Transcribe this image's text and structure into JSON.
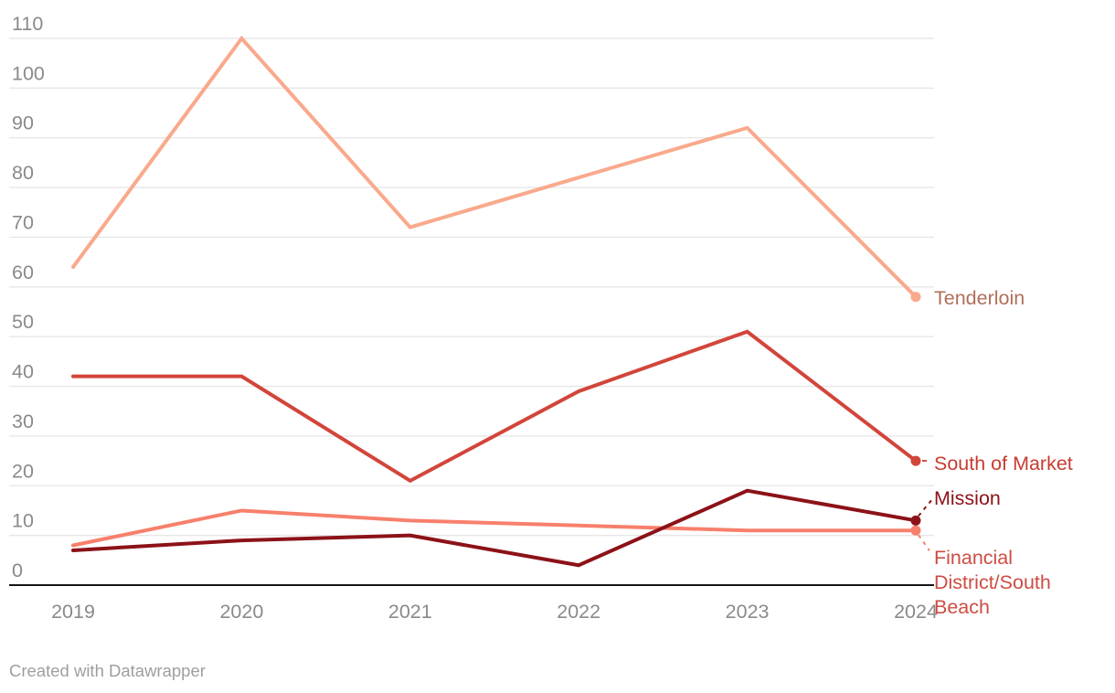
{
  "footer": {
    "credit": "Created with Datawrapper"
  },
  "axis": {
    "tick_color": "#8a8a8a",
    "gridline_color": "#e7e7e7",
    "baseline_color": "#151515"
  },
  "chart_data": {
    "type": "line",
    "title": "",
    "xlabel": "",
    "ylabel": "",
    "x": [
      2019,
      2020,
      2021,
      2022,
      2023,
      2024
    ],
    "ylim": [
      0,
      110
    ],
    "yticks": [
      0,
      10,
      20,
      30,
      40,
      50,
      60,
      70,
      80,
      90,
      100,
      110
    ],
    "grid": true,
    "legend_position": "direct-labels-right",
    "series": [
      {
        "id": "tenderloin",
        "name": "Tenderloin",
        "values": [
          64,
          110,
          72,
          82,
          92,
          58
        ],
        "color": "#F9A98C",
        "label_color": "#B06F58"
      },
      {
        "id": "south_of_market",
        "name": "South of Market",
        "values": [
          42,
          42,
          21,
          39,
          51,
          25
        ],
        "color": "#D2453B",
        "label_color": "#C93B32"
      },
      {
        "id": "financial_district",
        "name": "Financial District/South Beach",
        "values": [
          8,
          15,
          13,
          12,
          11,
          11
        ],
        "color": "#F7806C",
        "label_color": "#CE4C43"
      },
      {
        "id": "mission",
        "name": "Mission",
        "values": [
          7,
          9,
          10,
          4,
          19,
          13
        ],
        "color": "#8C1218",
        "label_color": "#8C1218"
      }
    ]
  }
}
